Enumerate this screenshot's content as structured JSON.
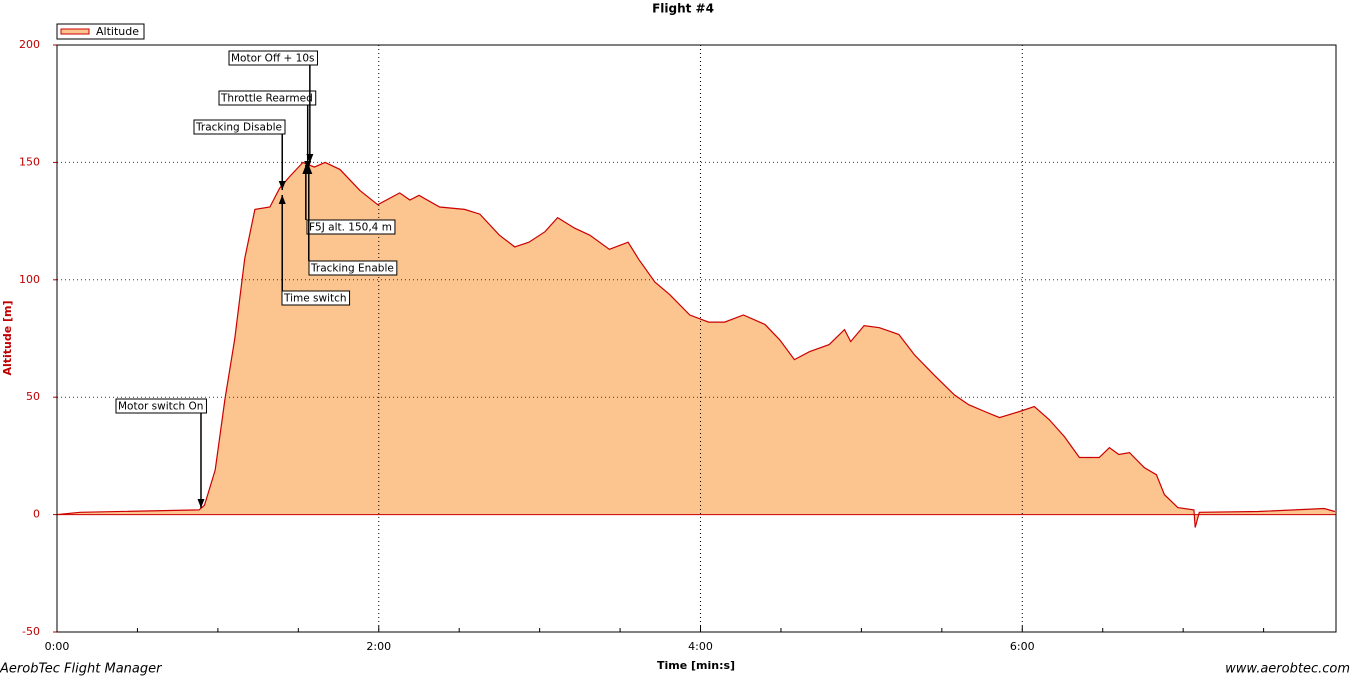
{
  "chart_data": {
    "type": "area",
    "title": "Flight #4",
    "x_label": "Time [min:s]",
    "y_label": "Altitude [m]",
    "footer_left": "AerobTec Flight Manager",
    "footer_right": "www.aerobtec.com",
    "legend": "top-left",
    "grid": true,
    "xlim": [
      0,
      477
    ],
    "ylim": [
      -50,
      200
    ],
    "xticks": [
      {
        "value": 0,
        "label": "0:00"
      },
      {
        "value": 120,
        "label": "2:00"
      },
      {
        "value": 240,
        "label": "4:00"
      },
      {
        "value": 360,
        "label": "6:00"
      }
    ],
    "xminorticks": [
      30,
      60,
      90,
      150,
      180,
      210,
      270,
      300,
      330,
      390,
      420,
      450
    ],
    "yticks": [
      -50,
      0,
      50,
      100,
      150,
      200
    ],
    "x": [
      0,
      8.6,
      53,
      55,
      59,
      62.6,
      66.3,
      70,
      73.8,
      79.4,
      83,
      86.8,
      91.7,
      96,
      100,
      105.5,
      113,
      119.6,
      127.8,
      131.6,
      135,
      142.7,
      152,
      157.7,
      165,
      170.7,
      176,
      182,
      186.7,
      193,
      198.7,
      206,
      213,
      217,
      223,
      228.5,
      236,
      243,
      249,
      256,
      264,
      269.5,
      275,
      280.7,
      288,
      293.7,
      296,
      301,
      306.7,
      314,
      319.8,
      327,
      334.7,
      340,
      346,
      351.5,
      359,
      364.5,
      370,
      375.7,
      381.3,
      388.7,
      392.5,
      396,
      400,
      405.5,
      410,
      413,
      418,
      424,
      424.5,
      426,
      448,
      472.6,
      476.6
    ],
    "series": [
      {
        "name": "Altitude",
        "color": "#cc0000",
        "fill": "#fcc48f",
        "values": [
          0,
          1,
          2,
          4,
          19,
          49,
          75,
          109,
          130,
          131,
          139,
          144,
          150,
          148,
          150,
          147,
          138,
          132,
          137,
          134,
          136,
          131,
          130,
          128,
          119,
          114,
          116,
          120.5,
          126.5,
          122,
          119,
          113,
          116,
          108.6,
          99,
          93.7,
          85,
          82,
          82,
          85,
          81,
          74.5,
          66,
          69.4,
          72.4,
          78.8,
          73.7,
          80.5,
          79.6,
          76.7,
          68,
          59.6,
          51,
          46.8,
          43.9,
          41.3,
          43.9,
          46,
          40.5,
          33.2,
          24.3,
          24.3,
          28.5,
          25.6,
          26.4,
          20,
          17,
          8.5,
          3,
          2,
          -5.5,
          1,
          1.3,
          2.6,
          1.3
        ]
      }
    ],
    "annotations": [
      {
        "text": "Motor switch On",
        "x": 53.7
      },
      {
        "text": "Time switch",
        "x": 84
      },
      {
        "text": "Tracking Disable",
        "x": 84
      },
      {
        "text": "Throttle Rearmed",
        "x": 93.5
      },
      {
        "text": "Motor Off + 10s",
        "x": 94.3
      },
      {
        "text": "F5J alt. 150,4 m",
        "x": 92.8
      },
      {
        "text": "Tracking Enable",
        "x": 93.9
      }
    ]
  }
}
